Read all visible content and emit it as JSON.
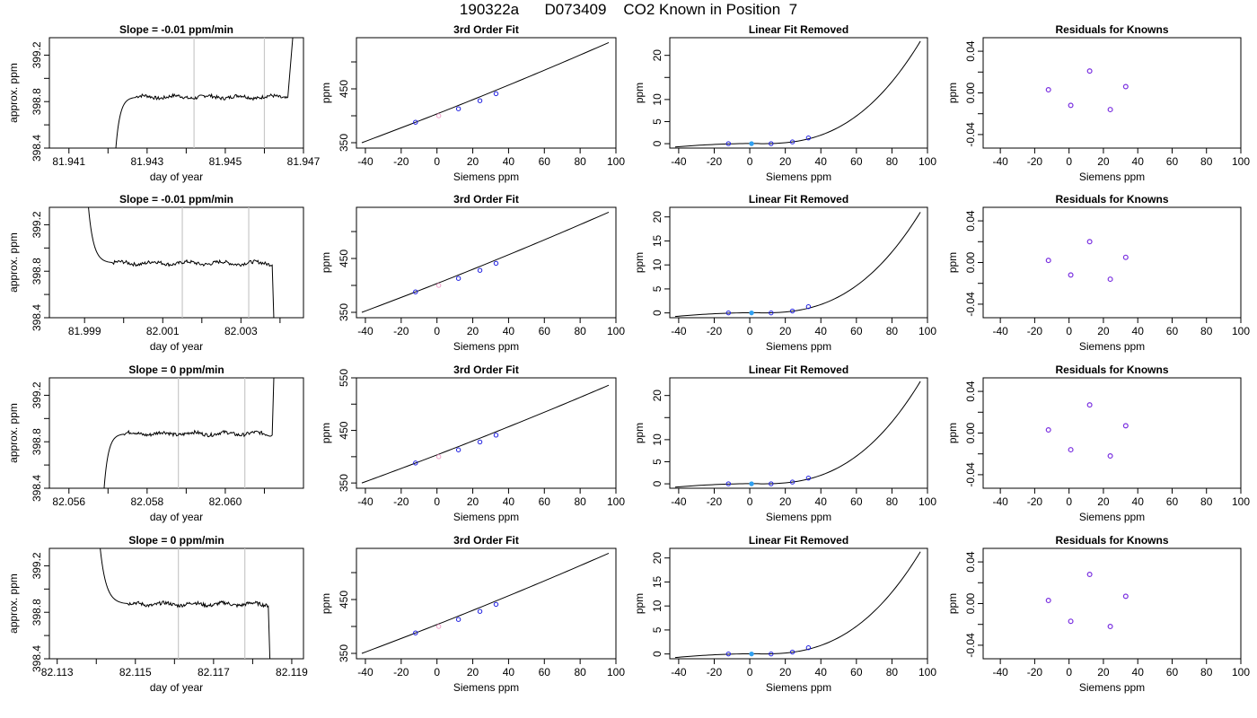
{
  "title": "190322a      D073409    CO2 Known in Position  7",
  "chart_data": [
    {
      "row": 0,
      "type": "line",
      "title": "Slope =  -0.01  ppm/min",
      "xlabel": "day of year",
      "ylabel": "approx. ppm",
      "xlim": [
        81.9405,
        81.947
      ],
      "ylim": [
        398.4,
        399.35
      ],
      "xticks": [
        "81.941",
        "81.943",
        "81.945",
        "81.947"
      ],
      "xtick_values": [
        81.941,
        81.943,
        81.945,
        81.947
      ],
      "xminor": [
        81.942,
        81.944,
        81.946
      ],
      "yticks": [
        "398.4",
        "398.8",
        "399.2"
      ],
      "ytick_values": [
        398.4,
        398.8,
        399.2
      ],
      "yminor": [
        398.6,
        399.0
      ],
      "vlines": [
        81.9442,
        81.946
      ],
      "ramp_start": 81.9422,
      "ramp_start_y": 398.4,
      "ramp_level_x": 81.9427,
      "ramp_end": 81.9466,
      "ramp_end_x": 81.94675,
      "plateau": 398.84,
      "end_dir": "up"
    },
    {
      "row": 0,
      "type": "line",
      "title": "3rd Order Fit",
      "xlabel": "Siemens ppm",
      "ylabel": "ppm",
      "xlim": [
        -45,
        100
      ],
      "ylim": [
        340,
        545
      ],
      "xticks": [
        "-40",
        "-20",
        "0",
        "20",
        "40",
        "60",
        "80",
        "100"
      ],
      "xtick_values": [
        -40,
        -20,
        0,
        20,
        40,
        60,
        80,
        100
      ],
      "yticks": [
        "350",
        "450"
      ],
      "ytick_values": [
        350,
        450
      ],
      "yminor": [
        400,
        500
      ],
      "curve_x": [
        -42,
        96
      ],
      "curve_y": [
        350,
        536
      ],
      "points": [
        {
          "x": -12,
          "y": 388
        },
        {
          "x": 1,
          "y": 400
        },
        {
          "x": 12,
          "y": 413
        },
        {
          "x": 24,
          "y": 428
        },
        {
          "x": 33,
          "y": 441
        }
      ]
    },
    {
      "row": 0,
      "type": "line",
      "title": "Linear Fit Removed",
      "xlabel": "Siemens ppm",
      "ylabel": "ppm",
      "xlim": [
        -45,
        100
      ],
      "ylim": [
        -1,
        24
      ],
      "xticks": [
        "-40",
        "-20",
        "0",
        "20",
        "40",
        "60",
        "80",
        "100"
      ],
      "xtick_values": [
        -40,
        -20,
        0,
        20,
        40,
        60,
        80,
        100
      ],
      "yticks": [
        "0",
        "5",
        "10",
        "20"
      ],
      "ytick_values": [
        0,
        5,
        10,
        20
      ],
      "yminor": [
        15
      ],
      "peak": 23.2,
      "points": [
        {
          "x": -12,
          "y": 0.0
        },
        {
          "x": 1,
          "y": 0.0
        },
        {
          "x": 12,
          "y": 0.0
        },
        {
          "x": 24,
          "y": 0.4
        },
        {
          "x": 33,
          "y": 1.3
        }
      ]
    },
    {
      "row": 0,
      "type": "scatter",
      "title": "Residuals for Knowns",
      "xlabel": "Siemens ppm",
      "ylabel": "ppm",
      "xlim": [
        -50,
        100
      ],
      "ylim": [
        -0.053,
        0.053
      ],
      "xticks": [
        "-40",
        "-20",
        "0",
        "20",
        "40",
        "60",
        "80",
        "100"
      ],
      "xtick_values": [
        -40,
        -20,
        0,
        20,
        40,
        60,
        80,
        100
      ],
      "yticks": [
        "-0.04",
        "0.00",
        "0.04"
      ],
      "ytick_values": [
        -0.04,
        0.0,
        0.04
      ],
      "yminor": [
        -0.02,
        0.02
      ],
      "points": [
        {
          "x": -12,
          "y": 0.003
        },
        {
          "x": 1,
          "y": -0.012
        },
        {
          "x": 12,
          "y": 0.021
        },
        {
          "x": 24,
          "y": -0.016
        },
        {
          "x": 33,
          "y": 0.006
        }
      ]
    },
    {
      "row": 1,
      "type": "line",
      "title": "Slope =  -0.01  ppm/min",
      "xlabel": "day of year",
      "ylabel": "approx. ppm",
      "xlim": [
        81.9981,
        82.0046
      ],
      "ylim": [
        398.4,
        399.35
      ],
      "xticks": [
        "81.999",
        "82.001",
        "82.003"
      ],
      "xtick_values": [
        81.999,
        82.001,
        82.003
      ],
      "xminor": [
        82.0,
        82.002,
        82.004
      ],
      "yticks": [
        "398.4",
        "398.8",
        "399.2"
      ],
      "ytick_values": [
        398.4,
        398.8,
        399.2
      ],
      "yminor": [
        398.6,
        399.0
      ],
      "vlines": [
        82.0015,
        82.0032
      ],
      "ramp_start": 81.9991,
      "ramp_start_y": 399.35,
      "ramp_level_x": 81.9997,
      "ramp_end": 82.0038,
      "ramp_end_x": 82.00385,
      "plateau": 398.87,
      "end_dir": "down"
    },
    {
      "row": 1,
      "type": "line",
      "title": "3rd Order Fit",
      "xlabel": "Siemens ppm",
      "ylabel": "ppm",
      "xlim": [
        -45,
        100
      ],
      "ylim": [
        340,
        545
      ],
      "xticks": [
        "-40",
        "-20",
        "0",
        "20",
        "40",
        "60",
        "80",
        "100"
      ],
      "xtick_values": [
        -40,
        -20,
        0,
        20,
        40,
        60,
        80,
        100
      ],
      "yticks": [
        "350",
        "450"
      ],
      "ytick_values": [
        350,
        450
      ],
      "yminor": [
        400,
        500
      ],
      "curve_x": [
        -42,
        96
      ],
      "curve_y": [
        350,
        536
      ],
      "points": [
        {
          "x": -12,
          "y": 388
        },
        {
          "x": 1,
          "y": 400
        },
        {
          "x": 12,
          "y": 413
        },
        {
          "x": 24,
          "y": 428
        },
        {
          "x": 33,
          "y": 441
        }
      ]
    },
    {
      "row": 1,
      "type": "line",
      "title": "Linear Fit Removed",
      "xlabel": "Siemens ppm",
      "ylabel": "ppm",
      "xlim": [
        -45,
        100
      ],
      "ylim": [
        -1,
        22
      ],
      "xticks": [
        "-40",
        "-20",
        "0",
        "20",
        "40",
        "60",
        "80",
        "100"
      ],
      "xtick_values": [
        -40,
        -20,
        0,
        20,
        40,
        60,
        80,
        100
      ],
      "yticks": [
        "0",
        "5",
        "10",
        "15",
        "20"
      ],
      "ytick_values": [
        0,
        5,
        10,
        15,
        20
      ],
      "yminor": [],
      "peak": 21.0,
      "points": [
        {
          "x": -12,
          "y": 0.0
        },
        {
          "x": 1,
          "y": 0.0
        },
        {
          "x": 12,
          "y": 0.0
        },
        {
          "x": 24,
          "y": 0.4
        },
        {
          "x": 33,
          "y": 1.3
        }
      ]
    },
    {
      "row": 1,
      "type": "scatter",
      "title": "Residuals for Knowns",
      "xlabel": "Siemens ppm",
      "ylabel": "ppm",
      "xlim": [
        -50,
        100
      ],
      "ylim": [
        -0.053,
        0.053
      ],
      "xticks": [
        "-40",
        "-20",
        "0",
        "20",
        "40",
        "60",
        "80",
        "100"
      ],
      "xtick_values": [
        -40,
        -20,
        0,
        20,
        40,
        60,
        80,
        100
      ],
      "yticks": [
        "-0.04",
        "0.00",
        "0.04"
      ],
      "ytick_values": [
        -0.04,
        0.0,
        0.04
      ],
      "yminor": [
        -0.02,
        0.02
      ],
      "points": [
        {
          "x": -12,
          "y": 0.002
        },
        {
          "x": 1,
          "y": -0.012
        },
        {
          "x": 12,
          "y": 0.02
        },
        {
          "x": 24,
          "y": -0.016
        },
        {
          "x": 33,
          "y": 0.005
        }
      ]
    },
    {
      "row": 2,
      "type": "line",
      "title": "Slope =  0  ppm/min",
      "xlabel": "day of year",
      "ylabel": "approx. ppm",
      "xlim": [
        82.0555,
        82.062
      ],
      "ylim": [
        398.4,
        399.35
      ],
      "xticks": [
        "82.056",
        "82.058",
        "82.060"
      ],
      "xtick_values": [
        82.056,
        82.058,
        82.06
      ],
      "xminor": [
        82.057,
        82.059,
        82.061
      ],
      "yticks": [
        "398.4",
        "398.8",
        "399.2"
      ],
      "ytick_values": [
        398.4,
        398.8,
        399.2
      ],
      "yminor": [
        398.6,
        399.0
      ],
      "vlines": [
        82.0588,
        82.0605
      ],
      "ramp_start": 82.0569,
      "ramp_start_y": 398.4,
      "ramp_level_x": 82.0574,
      "ramp_end": 82.0612,
      "ramp_end_x": 82.06125,
      "plateau": 398.87,
      "end_dir": "up"
    },
    {
      "row": 2,
      "type": "line",
      "title": "3rd Order Fit",
      "xlabel": "Siemens ppm",
      "ylabel": "ppm",
      "xlim": [
        -45,
        100
      ],
      "ylim": [
        340,
        550
      ],
      "xticks": [
        "-40",
        "-20",
        "0",
        "20",
        "40",
        "60",
        "80",
        "100"
      ],
      "xtick_values": [
        -40,
        -20,
        0,
        20,
        40,
        60,
        80,
        100
      ],
      "yticks": [
        "350",
        "450",
        "550"
      ],
      "ytick_values": [
        350,
        450,
        550
      ],
      "yminor": [
        400,
        500
      ],
      "curve_x": [
        -42,
        96
      ],
      "curve_y": [
        350,
        536
      ],
      "points": [
        {
          "x": -12,
          "y": 388
        },
        {
          "x": 1,
          "y": 400
        },
        {
          "x": 12,
          "y": 413
        },
        {
          "x": 24,
          "y": 428
        },
        {
          "x": 33,
          "y": 441
        }
      ]
    },
    {
      "row": 2,
      "type": "line",
      "title": "Linear Fit Removed",
      "xlabel": "Siemens ppm",
      "ylabel": "ppm",
      "xlim": [
        -45,
        100
      ],
      "ylim": [
        -1,
        24
      ],
      "xticks": [
        "-40",
        "-20",
        "0",
        "20",
        "40",
        "60",
        "80",
        "100"
      ],
      "xtick_values": [
        -40,
        -20,
        0,
        20,
        40,
        60,
        80,
        100
      ],
      "yticks": [
        "0",
        "5",
        "10",
        "20"
      ],
      "ytick_values": [
        0,
        5,
        10,
        20
      ],
      "yminor": [
        15
      ],
      "peak": 23.2,
      "points": [
        {
          "x": -12,
          "y": 0.0
        },
        {
          "x": 1,
          "y": 0.0
        },
        {
          "x": 12,
          "y": 0.0
        },
        {
          "x": 24,
          "y": 0.4
        },
        {
          "x": 33,
          "y": 1.3
        }
      ]
    },
    {
      "row": 2,
      "type": "scatter",
      "title": "Residuals for Knowns",
      "xlabel": "Siemens ppm",
      "ylabel": "ppm",
      "xlim": [
        -50,
        100
      ],
      "ylim": [
        -0.053,
        0.053
      ],
      "xticks": [
        "-40",
        "-20",
        "0",
        "20",
        "40",
        "60",
        "80",
        "100"
      ],
      "xtick_values": [
        -40,
        -20,
        0,
        20,
        40,
        60,
        80,
        100
      ],
      "yticks": [
        "-0.04",
        "0.00",
        "0.04"
      ],
      "ytick_values": [
        -0.04,
        0.0,
        0.04
      ],
      "yminor": [
        -0.02,
        0.02
      ],
      "points": [
        {
          "x": -12,
          "y": 0.003
        },
        {
          "x": 1,
          "y": -0.016
        },
        {
          "x": 12,
          "y": 0.027
        },
        {
          "x": 24,
          "y": -0.022
        },
        {
          "x": 33,
          "y": 0.007
        }
      ]
    },
    {
      "row": 3,
      "type": "line",
      "title": "Slope =  0  ppm/min",
      "xlabel": "day of year",
      "ylabel": "approx. ppm",
      "xlim": [
        82.1128,
        82.1193
      ],
      "ylim": [
        398.4,
        399.35
      ],
      "xticks": [
        "82.113",
        "82.115",
        "82.117",
        "82.119"
      ],
      "xtick_values": [
        82.113,
        82.115,
        82.117,
        82.119
      ],
      "xminor": [
        82.114,
        82.116,
        82.118
      ],
      "yticks": [
        "398.4",
        "398.8",
        "399.2"
      ],
      "ytick_values": [
        398.4,
        398.8,
        399.2
      ],
      "yminor": [
        398.6,
        399.0
      ],
      "vlines": [
        82.1161,
        82.1178
      ],
      "ramp_start": 82.1141,
      "ramp_start_y": 399.35,
      "ramp_level_x": 82.1148,
      "ramp_end": 82.1184,
      "ramp_end_x": 82.11845,
      "plateau": 398.87,
      "end_dir": "down"
    },
    {
      "row": 3,
      "type": "line",
      "title": "3rd Order Fit",
      "xlabel": "Siemens ppm",
      "ylabel": "ppm",
      "xlim": [
        -45,
        100
      ],
      "ylim": [
        340,
        545
      ],
      "xticks": [
        "-40",
        "-20",
        "0",
        "20",
        "40",
        "60",
        "80",
        "100"
      ],
      "xtick_values": [
        -40,
        -20,
        0,
        20,
        40,
        60,
        80,
        100
      ],
      "yticks": [
        "350",
        "450"
      ],
      "ytick_values": [
        350,
        450
      ],
      "yminor": [
        400,
        500
      ],
      "curve_x": [
        -42,
        96
      ],
      "curve_y": [
        350,
        536
      ],
      "points": [
        {
          "x": -12,
          "y": 388
        },
        {
          "x": 1,
          "y": 400
        },
        {
          "x": 12,
          "y": 413
        },
        {
          "x": 24,
          "y": 428
        },
        {
          "x": 33,
          "y": 441
        }
      ]
    },
    {
      "row": 3,
      "type": "line",
      "title": "Linear Fit Removed",
      "xlabel": "Siemens ppm",
      "ylabel": "ppm",
      "xlim": [
        -45,
        100
      ],
      "ylim": [
        -1,
        22
      ],
      "xticks": [
        "-40",
        "-20",
        "0",
        "20",
        "40",
        "60",
        "80",
        "100"
      ],
      "xtick_values": [
        -40,
        -20,
        0,
        20,
        40,
        60,
        80,
        100
      ],
      "yticks": [
        "0",
        "5",
        "10",
        "15",
        "20"
      ],
      "ytick_values": [
        0,
        5,
        10,
        15,
        20
      ],
      "yminor": [],
      "peak": 21.3,
      "points": [
        {
          "x": -12,
          "y": 0.0
        },
        {
          "x": 1,
          "y": 0.0
        },
        {
          "x": 12,
          "y": 0.0
        },
        {
          "x": 24,
          "y": 0.4
        },
        {
          "x": 33,
          "y": 1.3
        }
      ]
    },
    {
      "row": 3,
      "type": "scatter",
      "title": "Residuals for Knowns",
      "xlabel": "Siemens ppm",
      "ylabel": "ppm",
      "xlim": [
        -50,
        100
      ],
      "ylim": [
        -0.053,
        0.053
      ],
      "xticks": [
        "-40",
        "-20",
        "0",
        "20",
        "40",
        "60",
        "80",
        "100"
      ],
      "xtick_values": [
        -40,
        -20,
        0,
        20,
        40,
        60,
        80,
        100
      ],
      "yticks": [
        "-0.04",
        "0.00",
        "0.04"
      ],
      "ytick_values": [
        -0.04,
        0.0,
        0.04
      ],
      "yminor": [
        -0.02,
        0.02
      ],
      "points": [
        {
          "x": -12,
          "y": 0.003
        },
        {
          "x": 1,
          "y": -0.017
        },
        {
          "x": 12,
          "y": 0.028
        },
        {
          "x": 24,
          "y": -0.022
        },
        {
          "x": 33,
          "y": 0.007
        }
      ]
    }
  ]
}
